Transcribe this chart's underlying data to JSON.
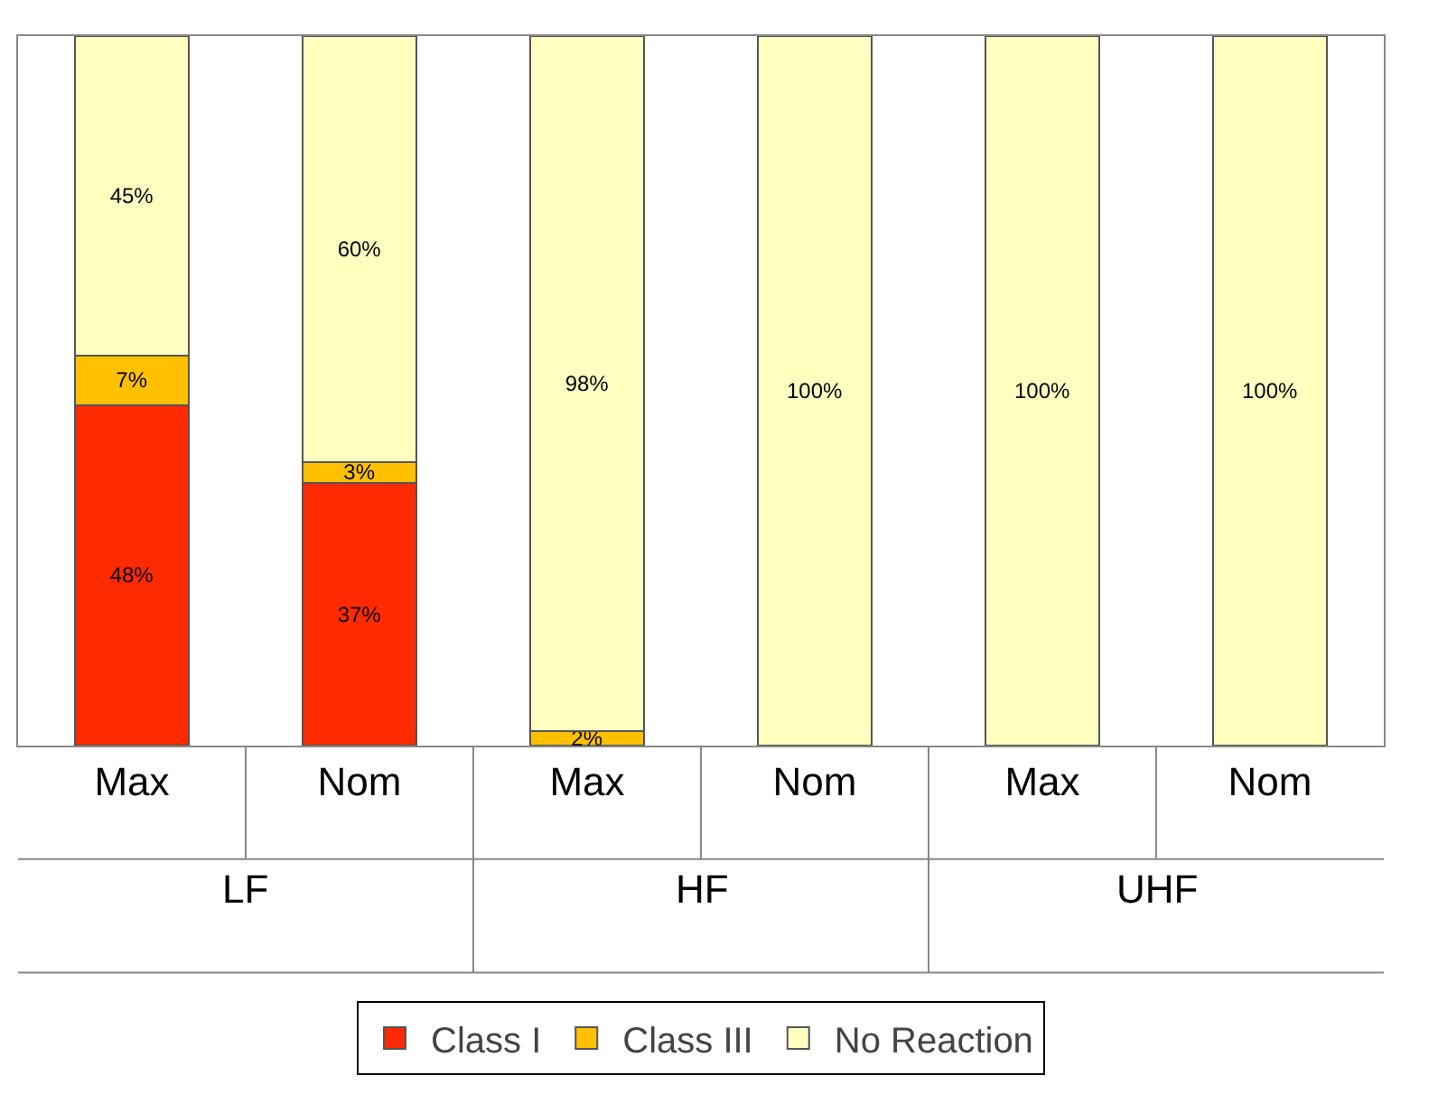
{
  "chart_data": {
    "type": "bar",
    "stacked": true,
    "categories": [
      "Max",
      "Nom",
      "Max",
      "Nom",
      "Max",
      "Nom"
    ],
    "series": [
      {
        "name": "Class I",
        "color": "#ff2a00",
        "values": [
          48,
          37,
          null,
          null,
          null,
          null
        ],
        "value_labels": [
          "48%",
          "37%",
          null,
          null,
          null,
          null
        ]
      },
      {
        "name": "Class III",
        "color": "#ffc000",
        "values": [
          7,
          3,
          2,
          null,
          null,
          null
        ],
        "value_labels": [
          "7%",
          "3%",
          "2%",
          null,
          null,
          null
        ]
      },
      {
        "name": "No Reaction",
        "color": "#ffffc0",
        "values": [
          45,
          60,
          98,
          100,
          100,
          100
        ],
        "value_labels": [
          "45%",
          "60%",
          "98%",
          "100%",
          "100%",
          "100%"
        ]
      }
    ],
    "annotations": [
      "LF",
      "HF",
      "UHF"
    ],
    "ylim": [
      0,
      100
    ],
    "tick_labels": "x",
    "grid": false,
    "legend": "bottom"
  }
}
